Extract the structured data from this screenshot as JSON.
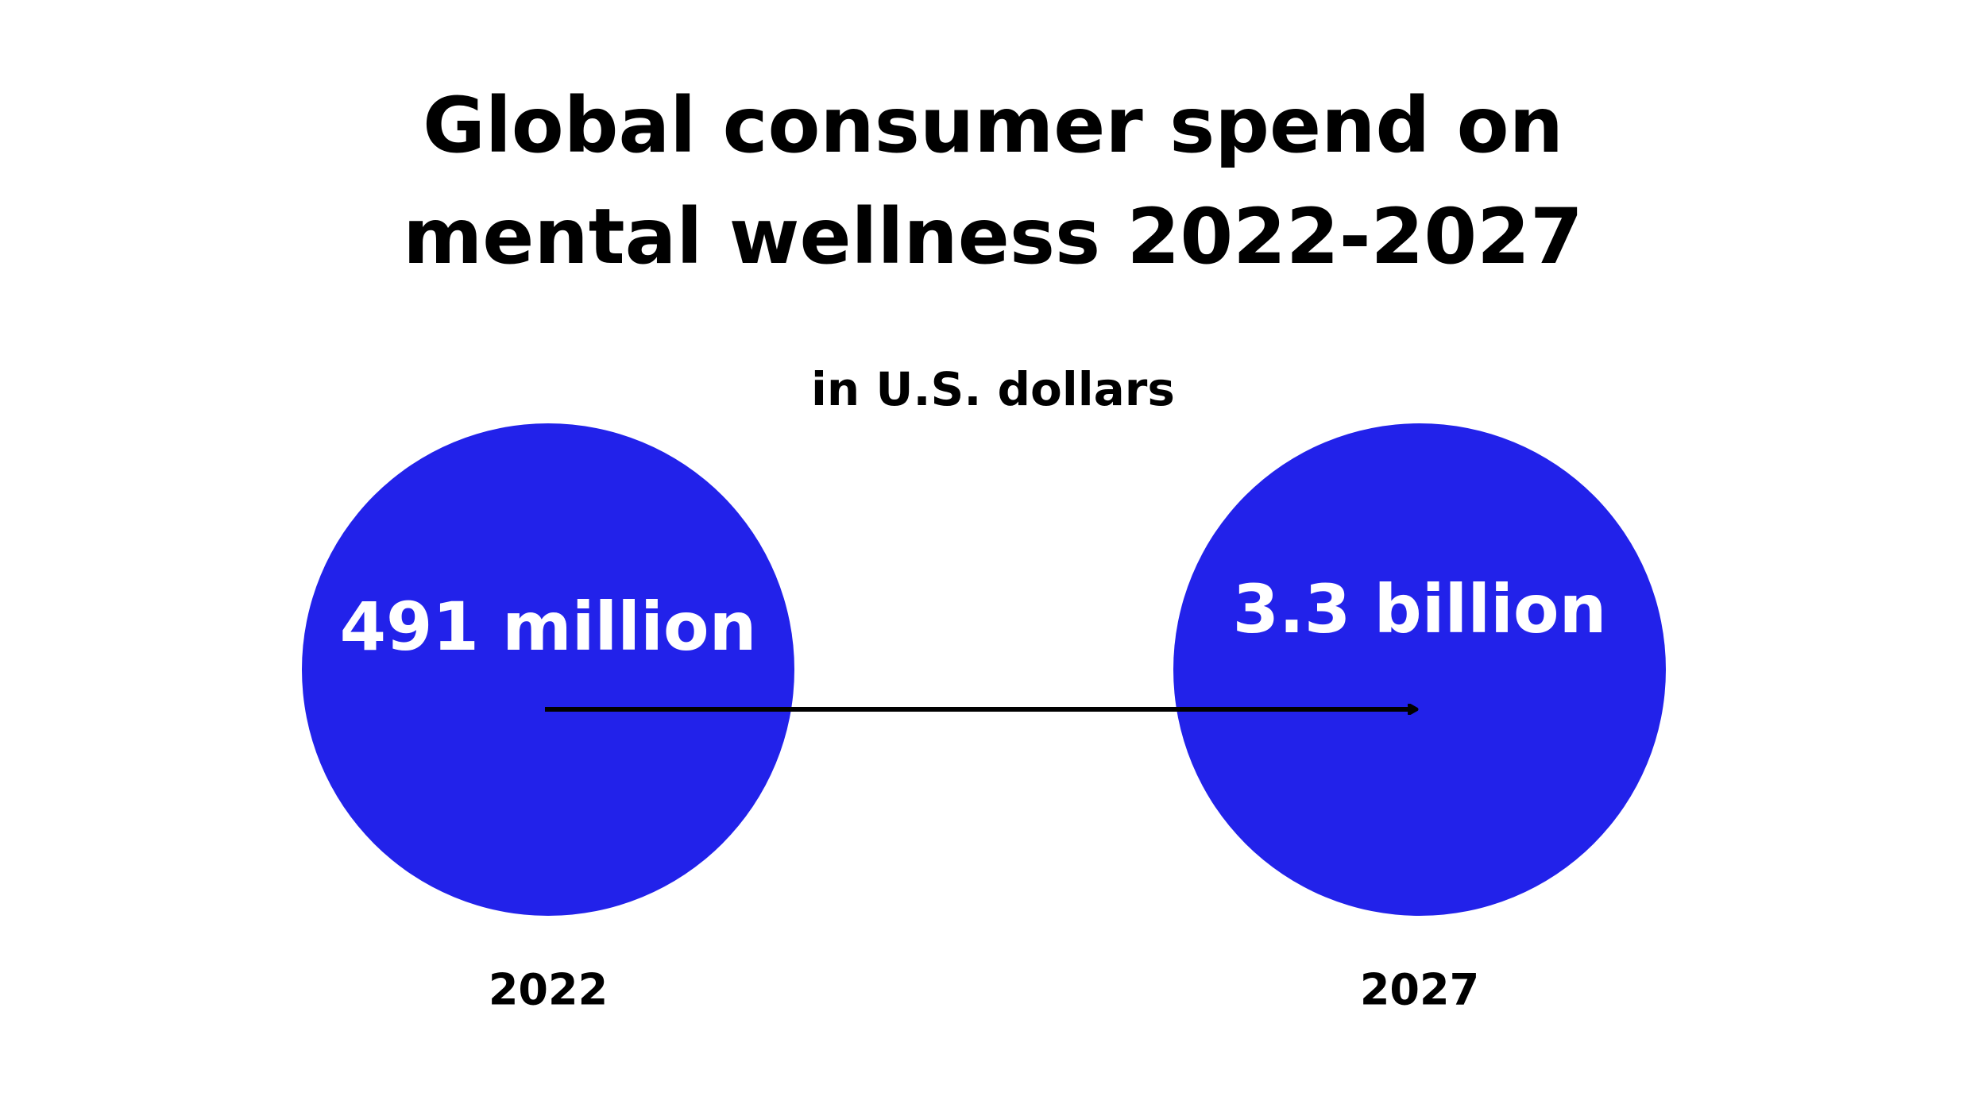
{
  "chart_data": {
    "type": "bubble",
    "title_line1": "Global consumer spend on",
    "title_line2": "mental wellness 2022-2027",
    "subtitle": "in U.S. dollars",
    "categories": [
      "2022",
      "2027"
    ],
    "value_labels": [
      "491 million",
      "3.3 billion"
    ],
    "values": [
      491000000,
      3300000000
    ],
    "bubble_color": "#2222ea",
    "label_color": "#ffffff",
    "arrow_color": "#000000",
    "background": "#ffffff"
  }
}
